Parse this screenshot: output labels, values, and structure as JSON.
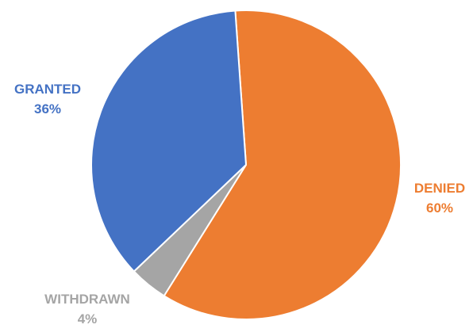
{
  "chart_data": {
    "type": "pie",
    "title": "",
    "start_angle_deg": -4,
    "direction": "clockwise",
    "slices": [
      {
        "category": "DENIED",
        "value": 60,
        "value_label": "60%",
        "color": "#ED7D31"
      },
      {
        "category": "WITHDRAWN",
        "value": 4,
        "value_label": "4%",
        "color": "#A5A5A5"
      },
      {
        "category": "GRANTED",
        "value": 36,
        "value_label": "36%",
        "color": "#4472C4"
      }
    ],
    "legend": "none",
    "labels": "outside, category and percentage"
  }
}
